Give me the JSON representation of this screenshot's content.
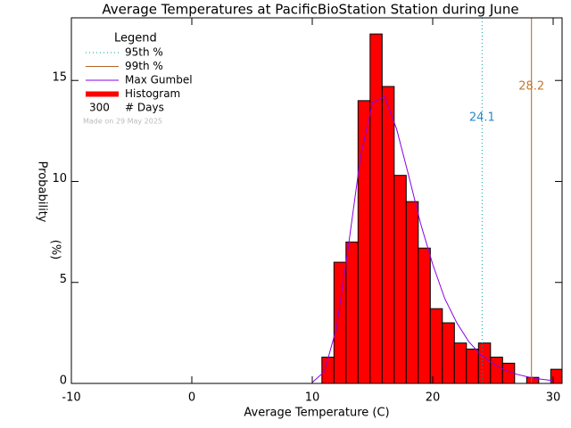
{
  "chart_data": {
    "type": "histogram",
    "title": "Average Temperatures at PacificBioStation Station during June",
    "x_label": "Average Temperature (C)",
    "y_label": "Probability",
    "y_label_unit": "(%)",
    "xlim": [
      -10,
      30.74
    ],
    "ylim": [
      0,
      18.1
    ],
    "xticks": [
      -10,
      0,
      10,
      20,
      30
    ],
    "yticks": [
      0,
      5,
      10,
      15
    ],
    "histogram": {
      "name": "Histogram",
      "color": "#ff0000",
      "bins": [
        10.8,
        11.8,
        12.8,
        13.8,
        14.8,
        15.8,
        16.8,
        17.8,
        18.8,
        19.8,
        20.8,
        21.8,
        22.8,
        23.8,
        24.8,
        25.8,
        26.8,
        27.8,
        28.8,
        29.8,
        30.8
      ],
      "values": [
        1.3,
        6.0,
        7.0,
        14.0,
        17.3,
        14.7,
        10.3,
        9.0,
        6.7,
        3.7,
        3.0,
        2.0,
        1.7,
        2.0,
        1.3,
        1.0,
        0,
        0.3,
        0,
        0.7
      ]
    },
    "gumbel": {
      "name": "Max Gumbel",
      "color": "#8a00e6",
      "x": [
        10,
        11,
        12,
        13,
        14,
        15,
        16,
        17,
        18,
        19,
        20,
        21,
        22,
        23,
        24,
        25,
        26,
        27,
        28,
        29,
        30
      ],
      "values": [
        0.05,
        0.58,
        2.72,
        6.8,
        11.2,
        13.9,
        14.2,
        12.6,
        10.3,
        7.9,
        5.9,
        4.2,
        3.0,
        2.06,
        1.42,
        0.98,
        0.66,
        0.45,
        0.31,
        0.21,
        0.14
      ]
    },
    "percentile_lines": [
      {
        "name": "95th %",
        "value": 24.1,
        "color": "#00a0a0",
        "label_color": "#2a88c8",
        "dash": "1,3"
      },
      {
        "name": "99th %",
        "value": 28.2,
        "color": "#b0642a",
        "label_color": "#c07830",
        "dash": ""
      }
    ],
    "legend": {
      "title": "Legend",
      "days": 300,
      "days_label": "# Days",
      "credit": "Made on 29 May 2025"
    }
  }
}
